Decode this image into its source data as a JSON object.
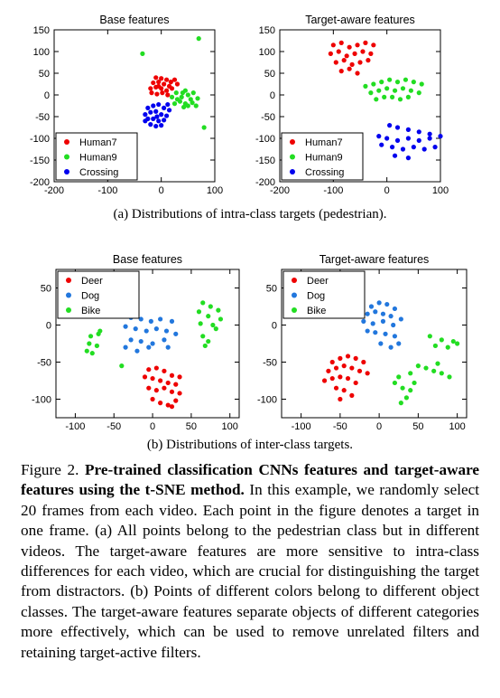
{
  "figure": {
    "subcaption_a": "(a) Distributions of intra-class targets (pedestrian).",
    "subcaption_b": "(b) Distributions of inter-class targets.",
    "caption_label": "Figure 2.",
    "caption_bold": "Pre-trained classification CNNs features and target-aware features using the t-SNE method.",
    "caption_text": "In this example, we randomly select 20 frames from each video. Each point in the figure denotes a target in one frame. (a) All points belong to the pedestrian class but in different videos. The target-aware features are more sensitive to intra-class differences for each video, which are crucial for distinguishing the target from distractors. (b) Points of different colors belong to different object classes. The target-aware features separate objects of different categories more effectively, which can be used to remove unrelated filters and retaining target-active filters."
  },
  "colors": {
    "red": "#ee0000",
    "green": "#22dd22",
    "blue": "#0000ee",
    "blue_b": "#2277dd"
  },
  "chart_data": [
    {
      "id": "a-base",
      "type": "scatter",
      "title": "Base features",
      "xlim": [
        -200,
        100
      ],
      "ylim": [
        -200,
        150
      ],
      "xticks": [
        -200,
        -100,
        0,
        100
      ],
      "yticks": [
        -200,
        -150,
        -100,
        -50,
        0,
        50,
        100,
        150
      ],
      "legend_position": "bottom-left",
      "series": [
        {
          "name": "Human7",
          "color": "#ee0000",
          "points": [
            [
              -10,
              40
            ],
            [
              0,
              38
            ],
            [
              10,
              35
            ],
            [
              18,
              30
            ],
            [
              -15,
              28
            ],
            [
              -5,
              30
            ],
            [
              5,
              25
            ],
            [
              15,
              20
            ],
            [
              25,
              35
            ],
            [
              -20,
              15
            ],
            [
              -10,
              18
            ],
            [
              0,
              15
            ],
            [
              10,
              10
            ],
            [
              20,
              15
            ],
            [
              -18,
              5
            ],
            [
              -8,
              2
            ],
            [
              2,
              5
            ],
            [
              12,
              0
            ],
            [
              30,
              25
            ],
            [
              -5,
              20
            ]
          ]
        },
        {
          "name": "Human9",
          "color": "#22dd22",
          "points": [
            [
              -35,
              95
            ],
            [
              70,
              130
            ],
            [
              80,
              -75
            ],
            [
              20,
              -5
            ],
            [
              30,
              -10
            ],
            [
              40,
              5
            ],
            [
              50,
              0
            ],
            [
              45,
              -20
            ],
            [
              35,
              -15
            ],
            [
              55,
              -10
            ],
            [
              60,
              5
            ],
            [
              25,
              -20
            ],
            [
              65,
              -25
            ],
            [
              50,
              -25
            ],
            [
              38,
              -5
            ],
            [
              58,
              -18
            ],
            [
              45,
              10
            ],
            [
              28,
              5
            ],
            [
              68,
              -8
            ],
            [
              42,
              -28
            ]
          ]
        },
        {
          "name": "Crossing",
          "color": "#0000ee",
          "points": [
            [
              -25,
              -30
            ],
            [
              -15,
              -25
            ],
            [
              -5,
              -22
            ],
            [
              5,
              -30
            ],
            [
              15,
              -35
            ],
            [
              -30,
              -45
            ],
            [
              -20,
              -40
            ],
            [
              -10,
              -38
            ],
            [
              0,
              -45
            ],
            [
              10,
              -48
            ],
            [
              -25,
              -55
            ],
            [
              -15,
              -55
            ],
            [
              -5,
              -60
            ],
            [
              5,
              -58
            ],
            [
              -20,
              -68
            ],
            [
              -10,
              -72
            ],
            [
              0,
              -70
            ],
            [
              -30,
              -60
            ],
            [
              12,
              -22
            ],
            [
              -8,
              -50
            ]
          ]
        }
      ]
    },
    {
      "id": "a-target",
      "type": "scatter",
      "title": "Target-aware features",
      "xlim": [
        -200,
        100
      ],
      "ylim": [
        -200,
        150
      ],
      "xticks": [
        -200,
        -100,
        0,
        100
      ],
      "yticks": [
        -200,
        -150,
        -100,
        -50,
        0,
        50,
        100,
        150
      ],
      "legend_position": "bottom-left",
      "series": [
        {
          "name": "Human7",
          "color": "#ee0000",
          "points": [
            [
              -100,
              115
            ],
            [
              -85,
              120
            ],
            [
              -70,
              110
            ],
            [
              -55,
              115
            ],
            [
              -40,
              120
            ],
            [
              -25,
              115
            ],
            [
              -105,
              95
            ],
            [
              -90,
              100
            ],
            [
              -75,
              90
            ],
            [
              -60,
              95
            ],
            [
              -45,
              100
            ],
            [
              -30,
              95
            ],
            [
              -95,
              75
            ],
            [
              -80,
              80
            ],
            [
              -65,
              70
            ],
            [
              -50,
              75
            ],
            [
              -35,
              80
            ],
            [
              -85,
              55
            ],
            [
              -70,
              60
            ],
            [
              -55,
              50
            ]
          ]
        },
        {
          "name": "Human9",
          "color": "#22dd22",
          "points": [
            [
              -40,
              20
            ],
            [
              -25,
              25
            ],
            [
              -10,
              30
            ],
            [
              5,
              35
            ],
            [
              20,
              30
            ],
            [
              35,
              35
            ],
            [
              50,
              30
            ],
            [
              65,
              25
            ],
            [
              -30,
              5
            ],
            [
              -15,
              10
            ],
            [
              0,
              15
            ],
            [
              15,
              10
            ],
            [
              30,
              15
            ],
            [
              45,
              10
            ],
            [
              60,
              5
            ],
            [
              -20,
              -10
            ],
            [
              -5,
              -5
            ],
            [
              10,
              -5
            ],
            [
              25,
              -10
            ],
            [
              40,
              -5
            ]
          ]
        },
        {
          "name": "Crossing",
          "color": "#0000ee",
          "points": [
            [
              5,
              -70
            ],
            [
              20,
              -75
            ],
            [
              40,
              -80
            ],
            [
              60,
              -85
            ],
            [
              80,
              -90
            ],
            [
              -15,
              -95
            ],
            [
              0,
              -100
            ],
            [
              20,
              -105
            ],
            [
              40,
              -100
            ],
            [
              60,
              -105
            ],
            [
              80,
              -100
            ],
            [
              100,
              -95
            ],
            [
              -10,
              -115
            ],
            [
              10,
              -120
            ],
            [
              30,
              -125
            ],
            [
              50,
              -120
            ],
            [
              70,
              -125
            ],
            [
              90,
              -120
            ],
            [
              15,
              -140
            ],
            [
              40,
              -145
            ]
          ]
        }
      ]
    },
    {
      "id": "b-base",
      "type": "scatter",
      "title": "Base features",
      "xlim": [
        -125,
        112
      ],
      "ylim": [
        -125,
        75
      ],
      "xticks": [
        -100,
        -50,
        0,
        50,
        100
      ],
      "yticks": [
        -100,
        -50,
        0,
        50
      ],
      "legend_position": "top-left",
      "series": [
        {
          "name": "Deer",
          "color": "#ee0000",
          "points": [
            [
              -5,
              -60
            ],
            [
              5,
              -58
            ],
            [
              15,
              -62
            ],
            [
              25,
              -68
            ],
            [
              -10,
              -70
            ],
            [
              0,
              -72
            ],
            [
              10,
              -75
            ],
            [
              20,
              -78
            ],
            [
              30,
              -80
            ],
            [
              35,
              -70
            ],
            [
              -5,
              -85
            ],
            [
              5,
              -88
            ],
            [
              15,
              -85
            ],
            [
              25,
              -90
            ],
            [
              35,
              -92
            ],
            [
              0,
              -100
            ],
            [
              10,
              -105
            ],
            [
              20,
              -108
            ],
            [
              30,
              -102
            ],
            [
              25,
              -110
            ]
          ]
        },
        {
          "name": "Dog",
          "color": "#2277dd",
          "points": [
            [
              -40,
              15
            ],
            [
              -28,
              10
            ],
            [
              -15,
              8
            ],
            [
              -2,
              5
            ],
            [
              10,
              8
            ],
            [
              25,
              5
            ],
            [
              -35,
              -2
            ],
            [
              -22,
              -5
            ],
            [
              -8,
              -8
            ],
            [
              5,
              -5
            ],
            [
              18,
              -8
            ],
            [
              30,
              -12
            ],
            [
              -28,
              -20
            ],
            [
              -15,
              -22
            ],
            [
              0,
              -25
            ],
            [
              15,
              -20
            ],
            [
              -35,
              -30
            ],
            [
              -20,
              -35
            ],
            [
              -5,
              -30
            ],
            [
              20,
              -30
            ]
          ]
        },
        {
          "name": "Bike",
          "color": "#22dd22",
          "points": [
            [
              -80,
              -15
            ],
            [
              -70,
              -12
            ],
            [
              -82,
              -25
            ],
            [
              -72,
              -28
            ],
            [
              -78,
              -38
            ],
            [
              -40,
              -55
            ],
            [
              65,
              30
            ],
            [
              75,
              25
            ],
            [
              85,
              20
            ],
            [
              60,
              18
            ],
            [
              72,
              12
            ],
            [
              88,
              8
            ],
            [
              62,
              2
            ],
            [
              78,
              0
            ],
            [
              65,
              -15
            ],
            [
              72,
              -22
            ],
            [
              -68,
              -8
            ],
            [
              82,
              -5
            ],
            [
              68,
              -28
            ],
            [
              -85,
              -35
            ]
          ]
        }
      ]
    },
    {
      "id": "b-target",
      "type": "scatter",
      "title": "Target-aware features",
      "xlim": [
        -125,
        112
      ],
      "ylim": [
        -125,
        75
      ],
      "xticks": [
        -100,
        -50,
        0,
        50,
        100
      ],
      "yticks": [
        -100,
        -50,
        0,
        50
      ],
      "legend_position": "top-left",
      "series": [
        {
          "name": "Deer",
          "color": "#ee0000",
          "points": [
            [
              -60,
              -50
            ],
            [
              -50,
              -45
            ],
            [
              -40,
              -42
            ],
            [
              -30,
              -45
            ],
            [
              -20,
              -50
            ],
            [
              -65,
              -62
            ],
            [
              -55,
              -58
            ],
            [
              -45,
              -55
            ],
            [
              -35,
              -58
            ],
            [
              -25,
              -62
            ],
            [
              -15,
              -65
            ],
            [
              -70,
              -75
            ],
            [
              -60,
              -72
            ],
            [
              -50,
              -70
            ],
            [
              -40,
              -72
            ],
            [
              -30,
              -78
            ],
            [
              -55,
              -85
            ],
            [
              -45,
              -88
            ],
            [
              -35,
              -95
            ],
            [
              -50,
              -100
            ]
          ]
        },
        {
          "name": "Dog",
          "color": "#2277dd",
          "points": [
            [
              -10,
              25
            ],
            [
              0,
              30
            ],
            [
              10,
              28
            ],
            [
              20,
              22
            ],
            [
              -15,
              15
            ],
            [
              -5,
              18
            ],
            [
              5,
              15
            ],
            [
              15,
              12
            ],
            [
              28,
              8
            ],
            [
              -20,
              5
            ],
            [
              -8,
              2
            ],
            [
              5,
              5
            ],
            [
              18,
              0
            ],
            [
              -15,
              -8
            ],
            [
              -5,
              -10
            ],
            [
              8,
              -12
            ],
            [
              20,
              -15
            ],
            [
              2,
              -25
            ],
            [
              15,
              -30
            ],
            [
              25,
              -25
            ]
          ]
        },
        {
          "name": "Bike",
          "color": "#22dd22",
          "points": [
            [
              65,
              -15
            ],
            [
              80,
              -20
            ],
            [
              95,
              -22
            ],
            [
              72,
              -28
            ],
            [
              88,
              -30
            ],
            [
              100,
              -25
            ],
            [
              50,
              -55
            ],
            [
              60,
              -58
            ],
            [
              70,
              -62
            ],
            [
              80,
              -65
            ],
            [
              90,
              -70
            ],
            [
              75,
              -52
            ],
            [
              40,
              -65
            ],
            [
              45,
              -78
            ],
            [
              25,
              -70
            ],
            [
              30,
              -85
            ],
            [
              40,
              -88
            ],
            [
              20,
              -78
            ],
            [
              35,
              -98
            ],
            [
              28,
              -105
            ]
          ]
        }
      ]
    }
  ]
}
